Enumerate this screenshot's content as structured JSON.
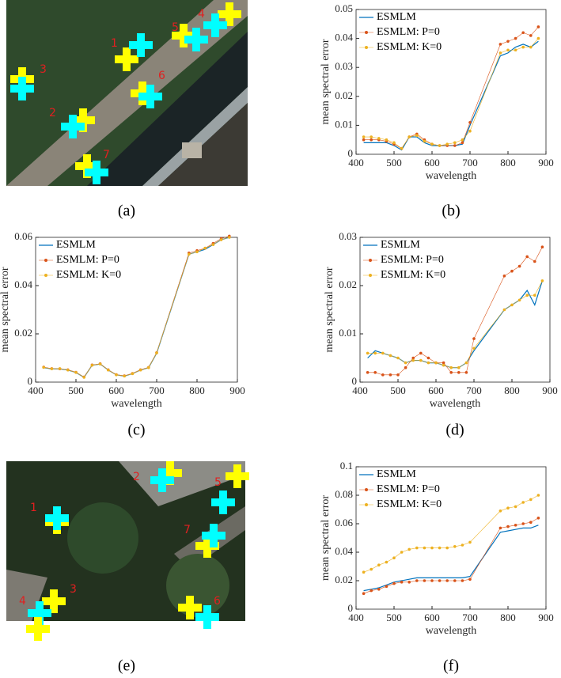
{
  "images": [
    {
      "caption": "(a)",
      "labels": [
        "1",
        "2",
        "3",
        "4",
        "5",
        "6",
        "7"
      ]
    },
    {
      "caption": "(e)",
      "labels": [
        "1",
        "2",
        "3",
        "4",
        "5",
        "6",
        "7"
      ]
    }
  ],
  "chart_data": [
    {
      "type": "line",
      "caption": "(b)",
      "xlabel": "wavelength",
      "ylabel": "mean spectral error",
      "legend": "upper left",
      "grid": false,
      "xlim": [
        400,
        900
      ],
      "xticks": [
        400,
        500,
        600,
        700,
        800,
        900
      ],
      "ylim": [
        0,
        0.05
      ],
      "yticks": [
        0,
        0.01,
        0.02,
        0.03,
        0.04,
        0.05
      ],
      "x": [
        420,
        440,
        460,
        480,
        500,
        520,
        540,
        560,
        580,
        600,
        620,
        640,
        660,
        680,
        700,
        780,
        800,
        820,
        840,
        860,
        880
      ],
      "series": [
        {
          "name": "ESMLM",
          "color": "#0072bd",
          "values": [
            0.004,
            0.004,
            0.004,
            0.004,
            0.003,
            0.0015,
            0.006,
            0.006,
            0.004,
            0.003,
            0.003,
            0.003,
            0.003,
            0.0035,
            0.01,
            0.034,
            0.035,
            0.037,
            0.038,
            0.037,
            0.039
          ]
        },
        {
          "name": "ESMLM: P=0",
          "color": "#d95319",
          "values": [
            0.005,
            0.005,
            0.005,
            0.0045,
            0.0035,
            0.002,
            0.006,
            0.007,
            0.005,
            0.0035,
            0.003,
            0.003,
            0.003,
            0.004,
            0.011,
            0.038,
            0.039,
            0.04,
            0.042,
            0.041,
            0.044
          ]
        },
        {
          "name": "ESMLM: K=0",
          "color": "#edb120",
          "values": [
            0.006,
            0.006,
            0.0055,
            0.005,
            0.004,
            0.002,
            0.006,
            0.0065,
            0.0045,
            0.0035,
            0.003,
            0.0035,
            0.004,
            0.005,
            0.008,
            0.035,
            0.036,
            0.036,
            0.037,
            0.037,
            0.04
          ]
        }
      ]
    },
    {
      "type": "line",
      "caption": "(c)",
      "xlabel": "wavelength",
      "ylabel": "mean spectral error",
      "legend": "upper left",
      "grid": false,
      "xlim": [
        400,
        900
      ],
      "xticks": [
        400,
        500,
        600,
        700,
        800,
        900
      ],
      "ylim": [
        0,
        0.06
      ],
      "yticks": [
        0,
        0.02,
        0.04,
        0.06
      ],
      "x": [
        420,
        440,
        460,
        480,
        500,
        520,
        540,
        560,
        580,
        600,
        620,
        640,
        660,
        680,
        700,
        780,
        800,
        820,
        840,
        860,
        880
      ],
      "series": [
        {
          "name": "ESMLM",
          "color": "#0072bd",
          "values": [
            0.006,
            0.0055,
            0.0055,
            0.005,
            0.004,
            0.002,
            0.007,
            0.0075,
            0.005,
            0.003,
            0.0025,
            0.0035,
            0.005,
            0.006,
            0.012,
            0.053,
            0.054,
            0.055,
            0.057,
            0.059,
            0.06
          ]
        },
        {
          "name": "ESMLM: P=0",
          "color": "#d95319",
          "values": [
            0.0062,
            0.0056,
            0.0055,
            0.0051,
            0.0041,
            0.0021,
            0.0071,
            0.0076,
            0.0051,
            0.0031,
            0.0026,
            0.0036,
            0.0051,
            0.0061,
            0.0122,
            0.0535,
            0.0545,
            0.0555,
            0.0575,
            0.0595,
            0.0605
          ]
        },
        {
          "name": "ESMLM: K=0",
          "color": "#edb120",
          "values": [
            0.0061,
            0.0055,
            0.0056,
            0.005,
            0.004,
            0.002,
            0.007,
            0.0075,
            0.005,
            0.003,
            0.0025,
            0.0035,
            0.005,
            0.006,
            0.0121,
            0.053,
            0.054,
            0.0555,
            0.057,
            0.059,
            0.06
          ]
        }
      ]
    },
    {
      "type": "line",
      "caption": "(d)",
      "xlabel": "wavelength",
      "ylabel": "mean spectral error",
      "legend": "upper left",
      "grid": false,
      "xlim": [
        400,
        900
      ],
      "xticks": [
        400,
        500,
        600,
        700,
        800,
        900
      ],
      "ylim": [
        0,
        0.03
      ],
      "yticks": [
        0,
        0.01,
        0.02,
        0.03
      ],
      "x": [
        420,
        440,
        460,
        480,
        500,
        520,
        540,
        560,
        580,
        600,
        620,
        640,
        660,
        680,
        700,
        780,
        800,
        820,
        840,
        860,
        880
      ],
      "series": [
        {
          "name": "ESMLM",
          "color": "#0072bd",
          "values": [
            0.005,
            0.0065,
            0.006,
            0.0055,
            0.005,
            0.004,
            0.0045,
            0.0045,
            0.004,
            0.004,
            0.0035,
            0.003,
            0.003,
            0.004,
            0.0065,
            0.015,
            0.016,
            0.017,
            0.019,
            0.016,
            0.021
          ]
        },
        {
          "name": "ESMLM: P=0",
          "color": "#d95319",
          "values": [
            0.002,
            0.002,
            0.0015,
            0.0015,
            0.0015,
            0.003,
            0.005,
            0.006,
            0.005,
            0.004,
            0.004,
            0.002,
            0.002,
            0.002,
            0.009,
            0.022,
            0.023,
            0.024,
            0.026,
            0.025,
            0.028
          ]
        },
        {
          "name": "ESMLM: K=0",
          "color": "#edb120",
          "values": [
            0.006,
            0.006,
            0.006,
            0.0055,
            0.005,
            0.004,
            0.0045,
            0.0045,
            0.004,
            0.004,
            0.0035,
            0.003,
            0.003,
            0.004,
            0.007,
            0.015,
            0.016,
            0.017,
            0.018,
            0.018,
            0.021
          ]
        }
      ]
    },
    {
      "type": "line",
      "caption": "(f)",
      "xlabel": "wavelength",
      "ylabel": "mean spectral error",
      "legend": "upper left",
      "grid": false,
      "xlim": [
        400,
        900
      ],
      "xticks": [
        400,
        500,
        600,
        700,
        800,
        900
      ],
      "ylim": [
        0,
        0.1
      ],
      "yticks": [
        0,
        0.02,
        0.04,
        0.06,
        0.08,
        0.1
      ],
      "x": [
        420,
        440,
        460,
        480,
        500,
        520,
        540,
        560,
        580,
        600,
        620,
        640,
        660,
        680,
        700,
        780,
        800,
        820,
        840,
        860,
        880
      ],
      "series": [
        {
          "name": "ESMLM",
          "color": "#0072bd",
          "values": [
            0.013,
            0.014,
            0.015,
            0.017,
            0.019,
            0.02,
            0.021,
            0.022,
            0.022,
            0.022,
            0.022,
            0.022,
            0.022,
            0.022,
            0.023,
            0.054,
            0.055,
            0.056,
            0.057,
            0.057,
            0.059
          ]
        },
        {
          "name": "ESMLM: P=0",
          "color": "#d95319",
          "values": [
            0.011,
            0.013,
            0.014,
            0.016,
            0.018,
            0.019,
            0.019,
            0.02,
            0.02,
            0.02,
            0.02,
            0.02,
            0.02,
            0.02,
            0.021,
            0.057,
            0.058,
            0.059,
            0.06,
            0.061,
            0.064
          ]
        },
        {
          "name": "ESMLM: K=0",
          "color": "#edb120",
          "values": [
            0.026,
            0.028,
            0.031,
            0.033,
            0.036,
            0.04,
            0.042,
            0.043,
            0.043,
            0.043,
            0.043,
            0.043,
            0.044,
            0.045,
            0.047,
            0.069,
            0.071,
            0.072,
            0.075,
            0.077,
            0.08
          ]
        }
      ]
    }
  ]
}
